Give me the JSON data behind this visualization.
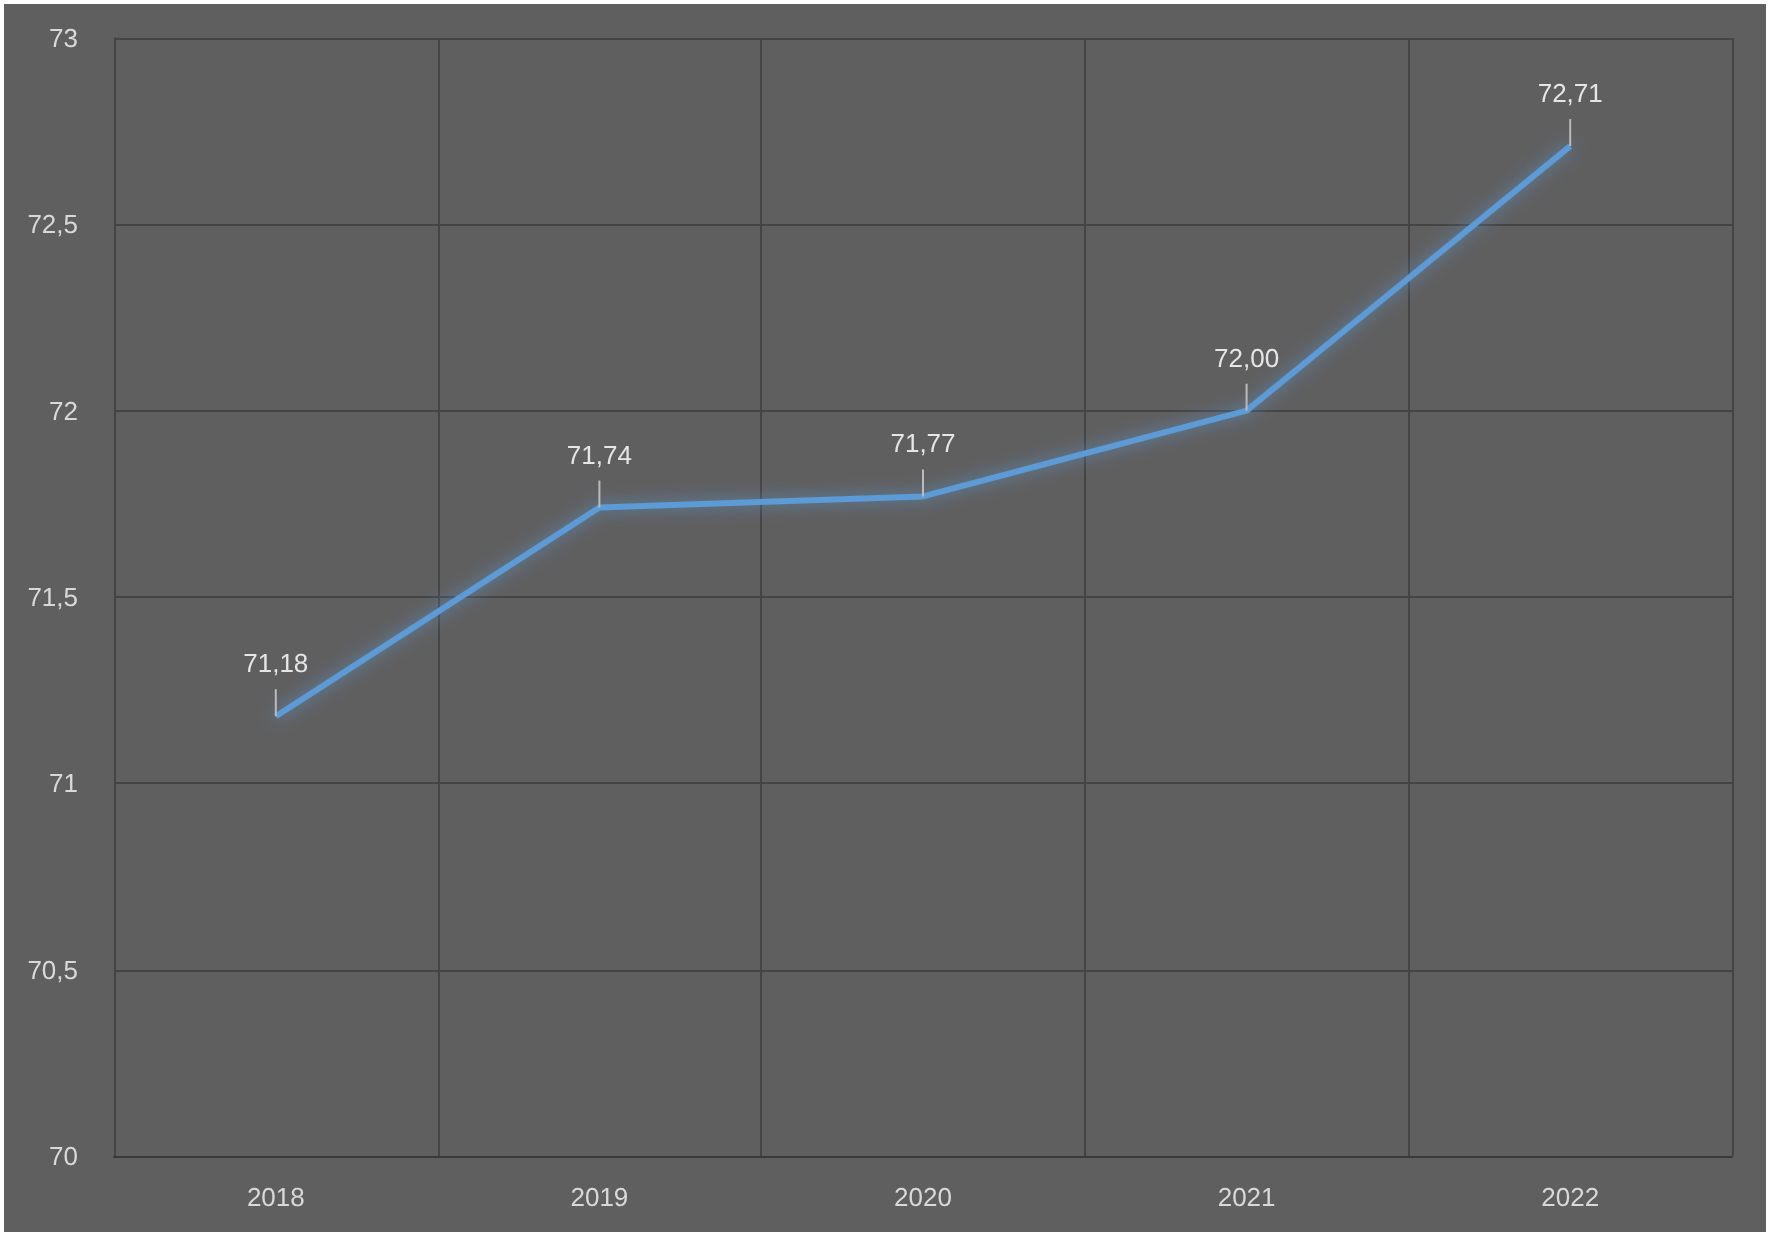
{
  "chart_data": {
    "type": "line",
    "categories": [
      "2018",
      "2019",
      "2020",
      "2021",
      "2022"
    ],
    "series": [
      {
        "color": "#5b9bd5",
        "values": [
          71.18,
          71.74,
          71.77,
          72.0,
          72.71
        ],
        "value_labels": [
          "71,18",
          "71,74",
          "71,77",
          "72,00",
          "72,71"
        ]
      }
    ],
    "ylim": [
      70,
      73
    ],
    "yticks": [
      70,
      {
        "value": 70.5,
        "label": "70,5"
      },
      71,
      {
        "value": 71.5,
        "label": "71,5"
      },
      72,
      {
        "value": 72.5,
        "label": "72,5"
      },
      73
    ],
    "grid": true,
    "marker": "none",
    "line_style": "solid"
  }
}
